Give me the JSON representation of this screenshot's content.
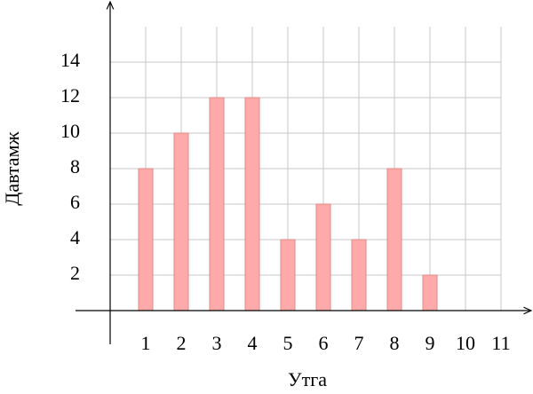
{
  "chart_data": {
    "type": "bar",
    "x_label": "Утга",
    "y_label": "Давтамж",
    "x": [
      1,
      2,
      3,
      4,
      5,
      6,
      7,
      8,
      9
    ],
    "values": [
      8,
      10,
      12,
      12,
      4,
      6,
      4,
      8,
      2
    ],
    "color": "#ffaaaa",
    "xlim": [
      -0.975,
      11.85
    ],
    "ylim": [
      -1.9,
      17.4
    ],
    "xticks": [
      1,
      2,
      3,
      4,
      5,
      6,
      7,
      8,
      9,
      10,
      11
    ],
    "yticks": [
      2,
      4,
      6,
      8,
      10,
      12,
      14
    ],
    "grid": true
  }
}
